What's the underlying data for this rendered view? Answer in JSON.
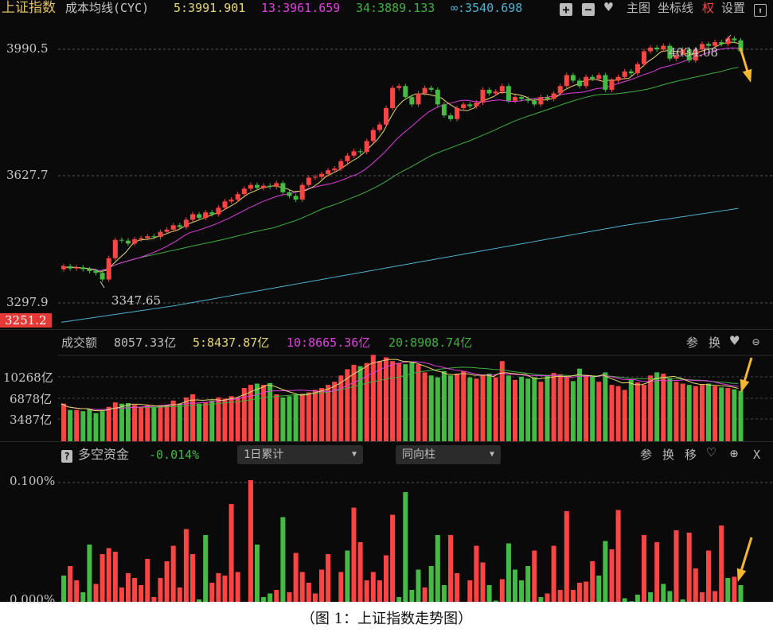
{
  "header": {
    "title": "上证指数",
    "indicator": "成本均线(CYC)",
    "ma5": "5:3991.901",
    "ma13": "13:3961.659",
    "ma34": "34:3889.133",
    "mainf": "∞:3540.698",
    "buttons": {
      "zoom_in": "+",
      "zoom_out": "−",
      "main": "主图",
      "coord": "坐标线",
      "quan": "权",
      "settings": "设置"
    }
  },
  "price_axis": {
    "labels": [
      "3990.5",
      "3627.7",
      "3297.9"
    ],
    "bottom_label": "3251.2"
  },
  "annotations": {
    "high": "4034.08",
    "low": "3347.65"
  },
  "volume_panel": {
    "title": "成交额",
    "value": "8057.33亿",
    "ma5": "5:8437.87亿",
    "ma10": "10:8665.36亿",
    "ma20": "20:8908.74亿",
    "axis": [
      "10268亿",
      "6878亿",
      "3487亿"
    ],
    "buttons": {
      "param": "参",
      "switch": "换"
    }
  },
  "fund_panel": {
    "help": "?",
    "title": "多空资金",
    "value": "-0.014%",
    "dropdown1": "1日累计",
    "dropdown2": "同向柱",
    "axis": [
      "0.100%",
      "0.000%"
    ],
    "buttons": {
      "param": "参",
      "switch": "换",
      "move": "移",
      "close": "X"
    }
  },
  "caption": "（图 1：上证指数走势图）",
  "colors": {
    "up": "#ff4444",
    "down": "#44bb44",
    "ma5": "#e8d870",
    "ma13": "#e040e0",
    "ma34": "#40b040",
    "mainf": "#50b0d0",
    "arrow": "#f5b731"
  },
  "chart_data": {
    "type": "candlestick",
    "price_ylim": [
      3251.2,
      4034.08
    ],
    "close": [
      3398,
      3392,
      3395,
      3390,
      3385,
      3380,
      3362,
      3420,
      3470,
      3468,
      3460,
      3472,
      3475,
      3480,
      3478,
      3492,
      3498,
      3510,
      3505,
      3525,
      3540,
      3530,
      3545,
      3540,
      3558,
      3575,
      3580,
      3595,
      3610,
      3620,
      3612,
      3618,
      3615,
      3625,
      3600,
      3590,
      3580,
      3620,
      3640,
      3642,
      3650,
      3660,
      3665,
      3685,
      3700,
      3712,
      3710,
      3740,
      3770,
      3785,
      3830,
      3885,
      3890,
      3860,
      3840,
      3870,
      3885,
      3880,
      3840,
      3810,
      3800,
      3830,
      3840,
      3835,
      3845,
      3880,
      3870,
      3875,
      3890,
      3850,
      3860,
      3855,
      3850,
      3840,
      3860,
      3855,
      3870,
      3890,
      3920,
      3905,
      3890,
      3915,
      3910,
      3920,
      3880,
      3905,
      3915,
      3930,
      3925,
      3950,
      3985,
      3995,
      3990,
      4000,
      3965,
      3975,
      3990,
      3960,
      3990,
      4005,
      4000,
      4010,
      4005,
      4020,
      4015,
      3985
    ],
    "open_first": 3390,
    "low_point": 3347.65,
    "high_point": 4034.08,
    "cyc_inf": [
      3245,
      3290,
      3345,
      3400,
      3455,
      3510,
      3556
    ],
    "volume": [
      6000,
      5000,
      5000,
      4800,
      5200,
      4500,
      4800,
      5500,
      6200,
      6000,
      6100,
      5800,
      5500,
      5700,
      5400,
      5600,
      5800,
      6500,
      6000,
      7000,
      7500,
      6000,
      6200,
      6500,
      7000,
      6800,
      7200,
      7000,
      8500,
      9000,
      9200,
      9000,
      9300,
      7500,
      7000,
      7200,
      7500,
      7600,
      7800,
      8200,
      8500,
      9000,
      9500,
      10500,
      11500,
      12200,
      12000,
      12500,
      13800,
      12800,
      13400,
      12800,
      12500,
      12300,
      12600,
      12300,
      11000,
      10500,
      10200,
      11200,
      10500,
      10800,
      11200,
      10200,
      10000,
      10500,
      10800,
      10200,
      12800,
      10500,
      9800,
      10300,
      10000,
      10200,
      9500,
      10500,
      10900,
      10700,
      10200,
      9600,
      11600,
      10600,
      10400,
      9500,
      11000,
      9000,
      8800,
      8200,
      9800,
      9400,
      9000,
      10500,
      11000,
      10800,
      10000,
      9500,
      9200,
      9000,
      8800,
      9000,
      9200,
      8800,
      8600,
      8500,
      8300,
      8057.33
    ],
    "fund_flow": [
      -0.022,
      0.03,
      0.018,
      -0.008,
      -0.048,
      0.015,
      0.04,
      0.045,
      0.042,
      0.012,
      0.024,
      0.02,
      0.014,
      0.036,
      0.004,
      0.02,
      0.034,
      0.047,
      0.012,
      0.061,
      0.04,
      -0.002,
      -0.056,
      0.016,
      0.024,
      0.022,
      0.082,
      0.025,
      0,
      0.102,
      -0.048,
      -0.004,
      -0.007,
      0.01,
      -0.071,
      0.008,
      0.041,
      0.025,
      0.016,
      0.007,
      0.027,
      0.04,
      0,
      0.025,
      -0.043,
      0.079,
      0.05,
      0.018,
      0.025,
      0.018,
      0.039,
      0.073,
      -0.004,
      -0.092,
      -0.01,
      -0.027,
      0.012,
      -0.03,
      -0.056,
      -0.014,
      0.056,
      0.024,
      0,
      0.018,
      0.047,
      0.033,
      -0.014,
      -0.001,
      0.019,
      -0.049,
      -0.027,
      -0.018,
      -0.03,
      0.043,
      -0.004,
      0.007,
      0.047,
      0.01,
      0.076,
      0.01,
      0.016,
      0.017,
      0.034,
      -0.022,
      -0.051,
      0.044,
      0.077,
      -0.003,
      -0.0005,
      -0.006,
      0.056,
      -0.008,
      0.05,
      -0.015,
      -0.009,
      0.06,
      -0.002,
      0.058,
      0.028,
      0.008,
      0.043,
      0.009,
      0.064,
      -0.02,
      0.021,
      -0.014
    ],
    "fund_ylim": [
      0,
      0.1
    ]
  }
}
